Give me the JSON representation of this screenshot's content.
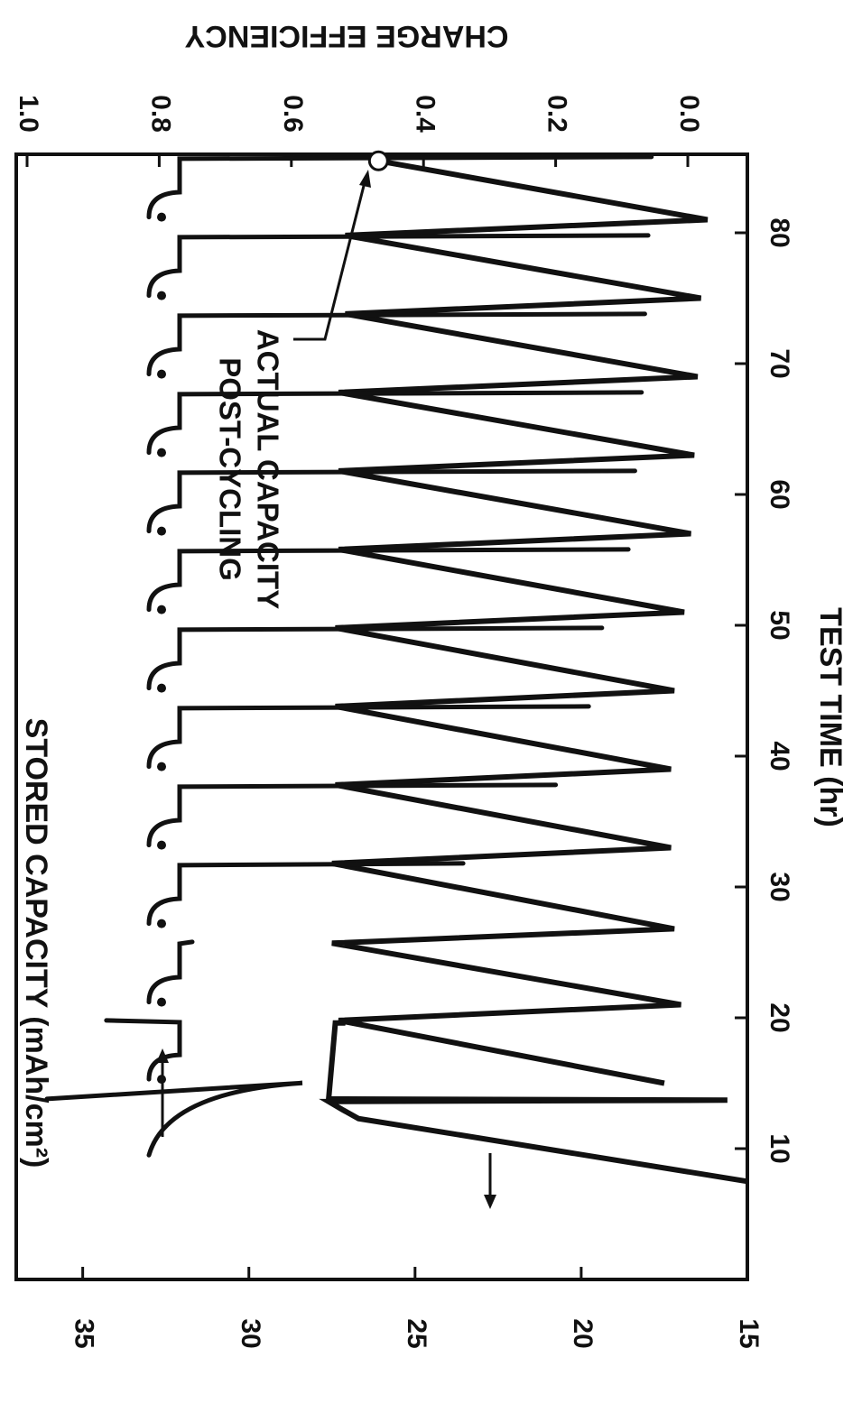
{
  "chart_data": {
    "type": "line",
    "rotation": "rotated 90 degrees clockwise",
    "xlabel": "TEST TIME (hr)",
    "ylabel": "STORED CAPACITY (mAh/cm²)",
    "y2label": "CHARGE EFFICIENCY",
    "xlim": [
      0,
      86
    ],
    "ylim": [
      15,
      37
    ],
    "y2lim": [
      0,
      1.0
    ],
    "xticks": [
      "10",
      "20",
      "30",
      "40",
      "50",
      "60",
      "70",
      "80"
    ],
    "yticks": [
      "15",
      "20",
      "25",
      "30",
      "35"
    ],
    "y2ticks": [
      "0.0",
      "0.2",
      "0.4",
      "0.6",
      "0.8",
      "1.0"
    ],
    "annotation": {
      "line1": "POST-CYCLING",
      "line2": "ACTUAL CAPACITY",
      "point": {
        "x": 85.5,
        "y": 26.1
      }
    },
    "series": [
      {
        "axis": "left",
        "points": [
          [
            7.5,
            15.0
          ],
          [
            12.3,
            26.7
          ],
          [
            13.0,
            27.2
          ],
          [
            13.6,
            27.6
          ],
          [
            13.7,
            15.6
          ],
          [
            13.8,
            27.6
          ],
          [
            19.6,
            27.4
          ],
          [
            19.6,
            27.1
          ],
          [
            19.8,
            27.3
          ],
          [
            15.0,
            17.5
          ],
          [
            19.8,
            27.3
          ],
          [
            21.0,
            17.0
          ],
          [
            25.7,
            27.5
          ],
          [
            26.8,
            17.2
          ],
          [
            31.8,
            27.5
          ],
          [
            33.0,
            17.3
          ],
          [
            37.8,
            27.4
          ],
          [
            39.0,
            17.3
          ],
          [
            43.8,
            27.4
          ],
          [
            45.0,
            17.2
          ],
          [
            49.8,
            27.4
          ],
          [
            51.0,
            16.9
          ],
          [
            55.8,
            27.3
          ],
          [
            57.0,
            16.7
          ],
          [
            61.8,
            27.3
          ],
          [
            63.0,
            16.6
          ],
          [
            67.8,
            27.3
          ],
          [
            69.0,
            16.5
          ],
          [
            73.8,
            27.1
          ],
          [
            75.0,
            16.4
          ],
          [
            79.8,
            27.1
          ],
          [
            81.0,
            16.2
          ],
          [
            85.5,
            26.1
          ]
        ]
      },
      {
        "axis": "right",
        "cycles": [
          {
            "start": 9.5,
            "end": 13.8,
            "end_eff": 0.97
          },
          {
            "start": 15.3,
            "end": 19.8,
            "end_eff": 0.88
          },
          {
            "start": 21.2,
            "end": 25.8,
            "end_eff": 0.75
          },
          {
            "start": 27.2,
            "end": 31.8,
            "end_eff": 0.34
          },
          {
            "start": 33.2,
            "end": 37.8,
            "end_eff": 0.2
          },
          {
            "start": 39.2,
            "end": 43.8,
            "end_eff": 0.15
          },
          {
            "start": 45.2,
            "end": 49.8,
            "end_eff": 0.13
          },
          {
            "start": 51.2,
            "end": 55.8,
            "end_eff": 0.09
          },
          {
            "start": 57.2,
            "end": 61.8,
            "end_eff": 0.08
          },
          {
            "start": 63.2,
            "end": 67.8,
            "end_eff": 0.07
          },
          {
            "start": 69.2,
            "end": 73.8,
            "end_eff": 0.065
          },
          {
            "start": 75.2,
            "end": 79.8,
            "end_eff": 0.06
          },
          {
            "start": 81.2,
            "end": 85.8,
            "end_eff": 0.055
          }
        ]
      }
    ]
  }
}
